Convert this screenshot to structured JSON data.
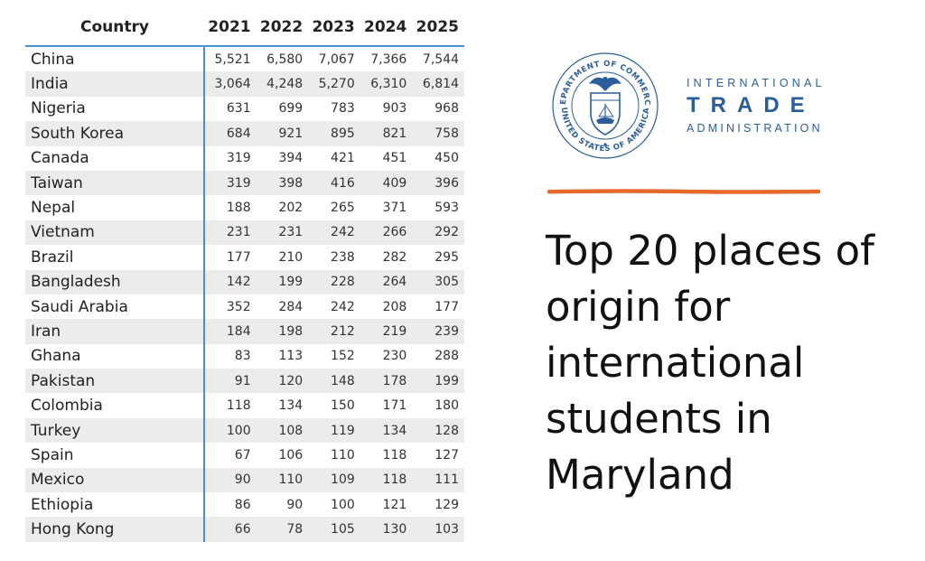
{
  "table": {
    "headers": [
      "Country",
      "2021",
      "2022",
      "2023",
      "2024",
      "2025"
    ],
    "rows": [
      {
        "country": "China",
        "values": [
          "5,521",
          "6,580",
          "7,067",
          "7,366",
          "7,544"
        ]
      },
      {
        "country": "India",
        "values": [
          "3,064",
          "4,248",
          "5,270",
          "6,310",
          "6,814"
        ]
      },
      {
        "country": "Nigeria",
        "values": [
          "631",
          "699",
          "783",
          "903",
          "968"
        ]
      },
      {
        "country": "South Korea",
        "values": [
          "684",
          "921",
          "895",
          "821",
          "758"
        ]
      },
      {
        "country": "Canada",
        "values": [
          "319",
          "394",
          "421",
          "451",
          "450"
        ]
      },
      {
        "country": "Taiwan",
        "values": [
          "319",
          "398",
          "416",
          "409",
          "396"
        ]
      },
      {
        "country": "Nepal",
        "values": [
          "188",
          "202",
          "265",
          "371",
          "593"
        ]
      },
      {
        "country": "Vietnam",
        "values": [
          "231",
          "231",
          "242",
          "266",
          "292"
        ]
      },
      {
        "country": "Brazil",
        "values": [
          "177",
          "210",
          "238",
          "282",
          "295"
        ]
      },
      {
        "country": "Bangladesh",
        "values": [
          "142",
          "199",
          "228",
          "264",
          "305"
        ]
      },
      {
        "country": "Saudi Arabia",
        "values": [
          "352",
          "284",
          "242",
          "208",
          "177"
        ]
      },
      {
        "country": "Iran",
        "values": [
          "184",
          "198",
          "212",
          "219",
          "239"
        ]
      },
      {
        "country": "Ghana",
        "values": [
          "83",
          "113",
          "152",
          "230",
          "288"
        ]
      },
      {
        "country": "Pakistan",
        "values": [
          "91",
          "120",
          "148",
          "178",
          "199"
        ]
      },
      {
        "country": "Colombia",
        "values": [
          "118",
          "134",
          "150",
          "171",
          "180"
        ]
      },
      {
        "country": "Turkey",
        "values": [
          "100",
          "108",
          "119",
          "134",
          "128"
        ]
      },
      {
        "country": "Spain",
        "values": [
          "67",
          "106",
          "110",
          "118",
          "127"
        ]
      },
      {
        "country": "Mexico",
        "values": [
          "90",
          "110",
          "109",
          "118",
          "111"
        ]
      },
      {
        "country": "Ethiopia",
        "values": [
          "86",
          "90",
          "100",
          "121",
          "129"
        ]
      },
      {
        "country": "Hong Kong",
        "values": [
          "66",
          "78",
          "105",
          "130",
          "103"
        ]
      }
    ]
  },
  "logo": {
    "seal_top": "DEPARTMENT OF COMMERCE",
    "seal_bottom": "UNITED STATES OF AMERICA",
    "line1": "INTERNATIONAL",
    "line2": "TRADE",
    "line3": "ADMINISTRATION",
    "brand_color": "#2a5d9b",
    "seal_icon": "eagle-shield-seal-icon"
  },
  "accent": {
    "divider_color": "#e8692a"
  },
  "title": {
    "lines": [
      "Top 20 places of",
      "origin for",
      "international",
      "students in",
      "Maryland"
    ]
  }
}
